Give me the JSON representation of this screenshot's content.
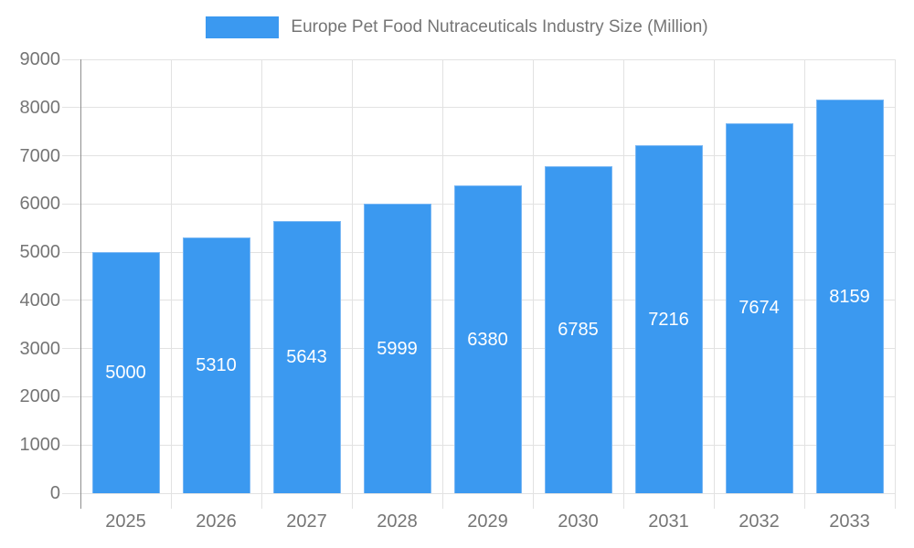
{
  "legend": {
    "label": "Europe Pet Food Nutraceuticals Industry Size (Million)"
  },
  "chart_data": {
    "type": "bar",
    "title": "Europe Pet Food Nutraceuticals Industry Size (Million)",
    "categories": [
      "2025",
      "2026",
      "2027",
      "2028",
      "2029",
      "2030",
      "2031",
      "2032",
      "2033"
    ],
    "values": [
      5000,
      5310,
      5643,
      5999,
      6380,
      6785,
      7216,
      7674,
      8159
    ],
    "value_labels": [
      "5000",
      "5310",
      "5643",
      "5999",
      "6380",
      "6785",
      "7216",
      "7674",
      "8159"
    ],
    "xlabel": "",
    "ylabel": "",
    "ylim": [
      0,
      9000
    ],
    "yticks": [
      0,
      1000,
      2000,
      3000,
      4000,
      5000,
      6000,
      7000,
      8000,
      9000
    ],
    "grid": true,
    "legend_position": "top-center",
    "bar_color": "#3b99f0",
    "bar_edge_color": "#79b7f4",
    "value_label_color": "#ffffff",
    "grid_color": "#e2e2e2",
    "axis_line_color": "#8f8f8f",
    "text_color": "#757575"
  }
}
